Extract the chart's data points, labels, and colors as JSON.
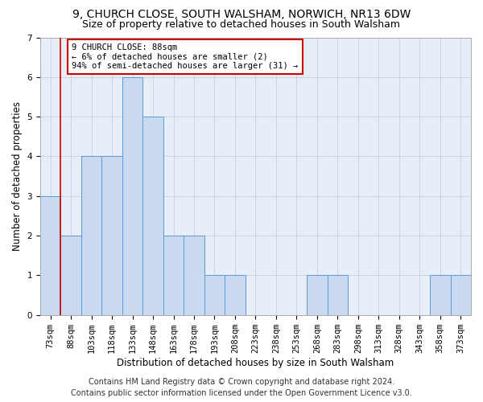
{
  "title": "9, CHURCH CLOSE, SOUTH WALSHAM, NORWICH, NR13 6DW",
  "subtitle": "Size of property relative to detached houses in South Walsham",
  "xlabel": "Distribution of detached houses by size in South Walsham",
  "ylabel": "Number of detached properties",
  "categories": [
    "73sqm",
    "88sqm",
    "103sqm",
    "118sqm",
    "133sqm",
    "148sqm",
    "163sqm",
    "178sqm",
    "193sqm",
    "208sqm",
    "223sqm",
    "238sqm",
    "253sqm",
    "268sqm",
    "283sqm",
    "298sqm",
    "313sqm",
    "328sqm",
    "343sqm",
    "358sqm",
    "373sqm"
  ],
  "values": [
    3,
    2,
    4,
    4,
    6,
    5,
    2,
    2,
    1,
    1,
    0,
    0,
    0,
    1,
    1,
    0,
    0,
    0,
    0,
    1,
    1
  ],
  "bar_color": "#c9d9f0",
  "bar_edge_color": "#5b9bd5",
  "highlight_index": 1,
  "highlight_line_color": "#cc0000",
  "annotation_text": "9 CHURCH CLOSE: 88sqm\n← 6% of detached houses are smaller (2)\n94% of semi-detached houses are larger (31) →",
  "annotation_box_color": "#ffffff",
  "annotation_box_edge_color": "#cc0000",
  "ylim": [
    0,
    7
  ],
  "yticks": [
    0,
    1,
    2,
    3,
    4,
    5,
    6,
    7
  ],
  "footer_line1": "Contains HM Land Registry data © Crown copyright and database right 2024.",
  "footer_line2": "Contains public sector information licensed under the Open Government Licence v3.0.",
  "background_color": "#ffffff",
  "plot_bg_color": "#e8eef8",
  "grid_color": "#c8d4e8",
  "title_fontsize": 10,
  "subtitle_fontsize": 9,
  "label_fontsize": 8.5,
  "tick_fontsize": 7.5,
  "footer_fontsize": 7,
  "annot_fontsize": 7.5
}
